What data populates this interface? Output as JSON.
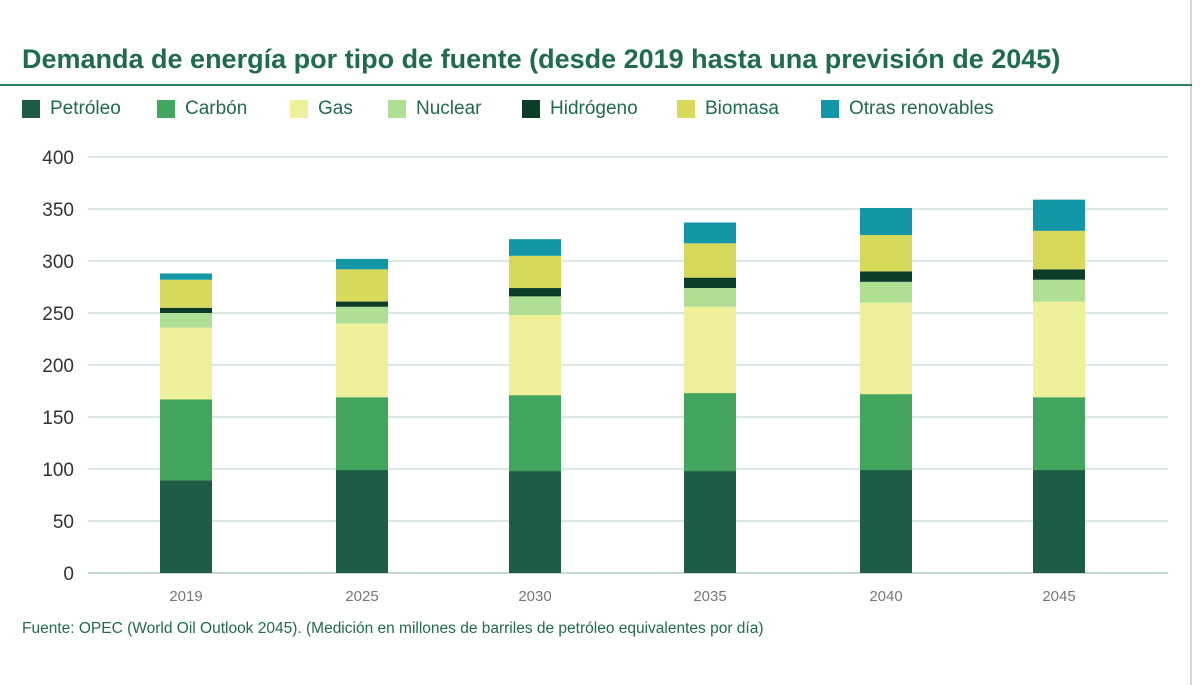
{
  "title": "Demanda de energía por tipo de fuente (desde 2019 hasta una previsión de 2045)",
  "source": "Fuente: OPEC (World Oil Outlook 2045). (Medición en millones de barriles de petróleo equivalentes por día)",
  "legend": [
    {
      "label": "Petróleo",
      "color": "#1e5c45"
    },
    {
      "label": "Carbón",
      "color": "#43a65e"
    },
    {
      "label": "Gas",
      "color": "#eef09a"
    },
    {
      "label": "Nuclear",
      "color": "#aedf95"
    },
    {
      "label": "Hidrógeno",
      "color": "#0b3d28"
    },
    {
      "label": "Biomasa",
      "color": "#d6d95a"
    },
    {
      "label": "Otras renovables",
      "color": "#1396a6"
    }
  ],
  "chart_data": {
    "type": "bar",
    "stacked": true,
    "title": "Demanda de energía por tipo de fuente (desde 2019 hasta una previsión de 2045)",
    "xlabel": "",
    "ylabel": "",
    "ylim": [
      0,
      400
    ],
    "yticks": [
      0,
      50,
      100,
      150,
      200,
      250,
      300,
      350,
      400
    ],
    "grid": true,
    "legend_position": "top",
    "categories": [
      "2019",
      "2025",
      "2030",
      "2035",
      "2040",
      "2045"
    ],
    "series": [
      {
        "name": "Petróleo",
        "color": "#1e5c45",
        "values": [
          89,
          99,
          98,
          98,
          99,
          99
        ]
      },
      {
        "name": "Carbón",
        "color": "#43a65e",
        "values": [
          78,
          70,
          73,
          75,
          73,
          70
        ]
      },
      {
        "name": "Gas",
        "color": "#eef09a",
        "values": [
          69,
          71,
          77,
          83,
          88,
          92
        ]
      },
      {
        "name": "Nuclear",
        "color": "#aedf95",
        "values": [
          14,
          16,
          18,
          18,
          20,
          21
        ]
      },
      {
        "name": "Hidrógeno",
        "color": "#0b3d28",
        "values": [
          5,
          5,
          8,
          10,
          10,
          10
        ]
      },
      {
        "name": "Biomasa",
        "color": "#d6d95a",
        "values": [
          27,
          31,
          31,
          33,
          35,
          37
        ]
      },
      {
        "name": "Otras renovables",
        "color": "#1396a6",
        "values": [
          6,
          10,
          16,
          20,
          26,
          30
        ]
      }
    ]
  }
}
